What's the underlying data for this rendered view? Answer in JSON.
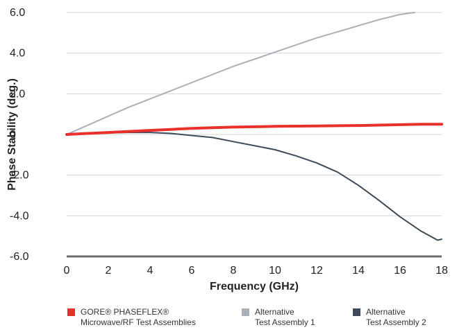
{
  "chart_data": {
    "type": "line",
    "title": "",
    "xlabel": "Frequency (GHz)",
    "ylabel": "Phase Stability (deg.)",
    "xlim": [
      0,
      18
    ],
    "ylim": [
      -6,
      6
    ],
    "x_ticks": [
      "0",
      "2",
      "4",
      "6",
      "8",
      "10",
      "12",
      "14",
      "16",
      "18"
    ],
    "y_ticks": [
      "6.0",
      "4.0",
      "2.0",
      "0",
      "-2.0",
      "-4.0",
      "-6.0"
    ],
    "grid": "horizontal",
    "legend_position": "bottom",
    "series": [
      {
        "name_lines": [
          "GORE® PHASEFLEX®",
          "Microwave/RF Test Assemblies"
        ],
        "color": "#e8312a",
        "x": [
          0,
          1,
          2,
          3,
          4,
          5,
          6,
          7,
          8,
          9,
          10,
          11,
          12,
          13,
          14,
          15,
          16,
          17,
          18
        ],
        "y": [
          0,
          0.05,
          0.1,
          0.15,
          0.2,
          0.25,
          0.3,
          0.33,
          0.36,
          0.38,
          0.4,
          0.41,
          0.42,
          0.43,
          0.44,
          0.46,
          0.48,
          0.5,
          0.5
        ]
      },
      {
        "name_lines": [
          "Alternative",
          "Test Assembly 1"
        ],
        "color": "#a9b0b8",
        "x": [
          0,
          1,
          2,
          3,
          4,
          5,
          6,
          7,
          8,
          9,
          10,
          11,
          12,
          13,
          14,
          15,
          16,
          16.7
        ],
        "y": [
          0,
          0.45,
          0.9,
          1.35,
          1.75,
          2.15,
          2.55,
          2.95,
          3.35,
          3.7,
          4.05,
          4.4,
          4.75,
          5.05,
          5.35,
          5.65,
          5.9,
          6.0
        ]
      },
      {
        "name_lines": [
          "Alternative",
          "Test Assembly 2"
        ],
        "color": "#3d4a57",
        "x": [
          0,
          1,
          2,
          3,
          4,
          5,
          6,
          7,
          8,
          9,
          10,
          11,
          12,
          13,
          14,
          15,
          16,
          17,
          17.8,
          18
        ],
        "y": [
          0,
          0.03,
          0.08,
          0.1,
          0.1,
          0.05,
          -0.05,
          -0.15,
          -0.35,
          -0.55,
          -0.75,
          -1.05,
          -1.4,
          -1.85,
          -2.5,
          -3.25,
          -4.05,
          -4.75,
          -5.2,
          -5.15
        ]
      }
    ]
  }
}
